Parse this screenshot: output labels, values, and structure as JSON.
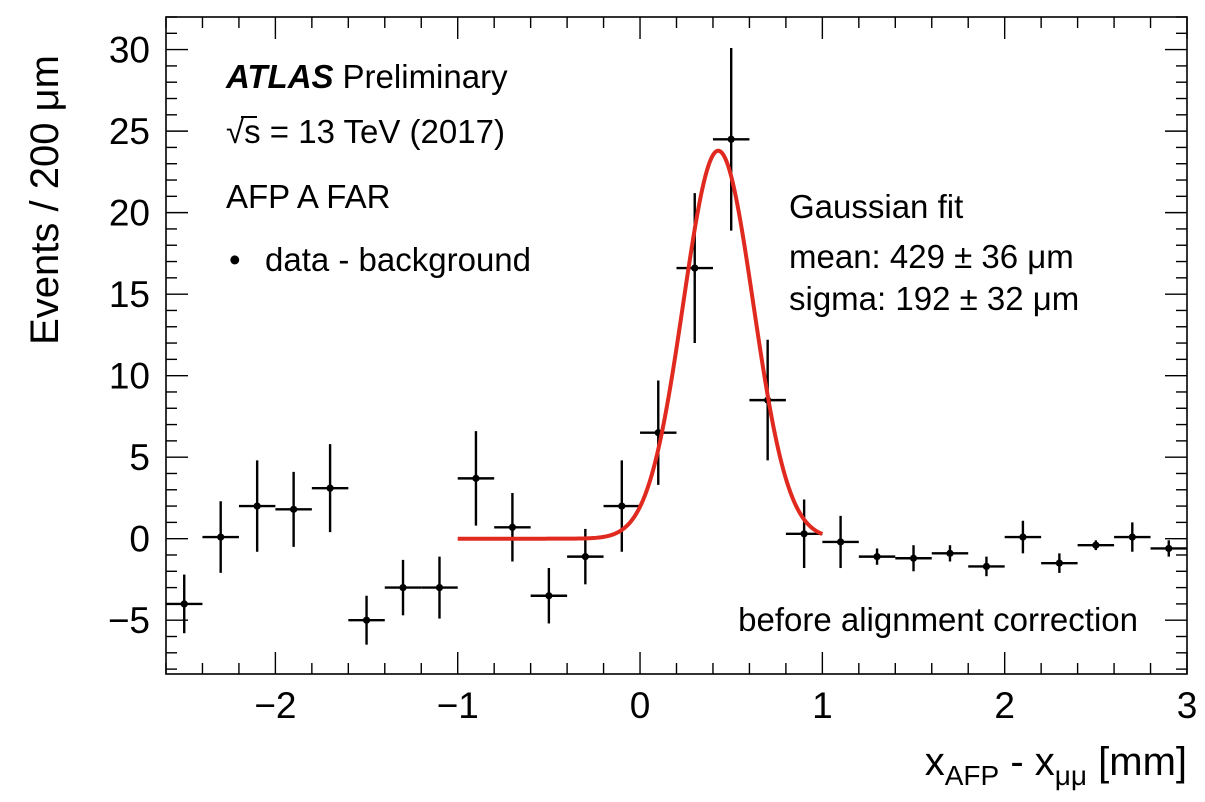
{
  "chart_data": {
    "type": "scatter",
    "title": "",
    "xlabel": {
      "main": "x",
      "sub1": "AFP",
      "minus": " - x",
      "sub2": "μμ",
      "unit": " [mm]"
    },
    "ylabel": "Events / 200 μm",
    "xlim": [
      -2.6,
      3.0
    ],
    "ylim": [
      -8.3,
      32.0
    ],
    "xticks": [
      -2,
      -1,
      0,
      1,
      2,
      3
    ],
    "xtick_labels": [
      "−2",
      "−1",
      "0",
      "1",
      "2",
      "3"
    ],
    "yticks": [
      -5,
      0,
      5,
      10,
      15,
      20,
      25,
      30
    ],
    "ytick_labels": [
      "−5",
      "0",
      "5",
      "10",
      "15",
      "20",
      "25",
      "30"
    ],
    "annotations": {
      "atlas": "ATLAS",
      "preliminary": "Preliminary",
      "sqrt_symbol": "√",
      "energy": "s = 13 TeV (2017)",
      "detector": "AFP A FAR",
      "legend_marker": "•",
      "legend_label": "data - background",
      "fit_title": "Gaussian fit",
      "fit_mean": "mean: 429 ±  36 μm",
      "fit_sigma": "sigma: 192 ±  32 μm",
      "note": "before alignment correction"
    },
    "series": [
      {
        "name": "data - background",
        "type": "points",
        "bin_half_width": 0.1,
        "x": [
          -2.5,
          -2.3,
          -2.1,
          -1.9,
          -1.7,
          -1.5,
          -1.3,
          -1.1,
          -0.9,
          -0.7,
          -0.5,
          -0.3,
          -0.1,
          0.1,
          0.3,
          0.5,
          0.7,
          0.9,
          1.1,
          1.3,
          1.5,
          1.7,
          1.9,
          2.1,
          2.3,
          2.5,
          2.7,
          2.9
        ],
        "y": [
          -4.0,
          0.1,
          2.0,
          1.8,
          3.1,
          -5.0,
          -3.0,
          -3.0,
          3.7,
          0.7,
          -3.5,
          -1.1,
          2.0,
          6.5,
          16.6,
          24.5,
          8.5,
          0.3,
          -0.2,
          -1.1,
          -1.2,
          -0.9,
          -1.7,
          0.1,
          -1.5,
          -0.4,
          0.1,
          -0.6
        ],
        "yerr": [
          1.8,
          2.2,
          2.8,
          2.3,
          2.7,
          1.5,
          1.7,
          1.9,
          2.9,
          2.1,
          1.7,
          1.7,
          2.8,
          3.2,
          4.6,
          5.6,
          3.7,
          2.1,
          1.6,
          0.5,
          0.8,
          0.5,
          0.6,
          1.0,
          0.6,
          0.3,
          0.9,
          0.5
        ],
        "color": "#000000"
      },
      {
        "name": "Gaussian fit",
        "type": "curve",
        "x_range": [
          -1.0,
          1.0
        ],
        "mean": 0.429,
        "sigma": 0.192,
        "amplitude": 23.8,
        "baseline": 0.0,
        "color": "#e02a20"
      }
    ]
  }
}
